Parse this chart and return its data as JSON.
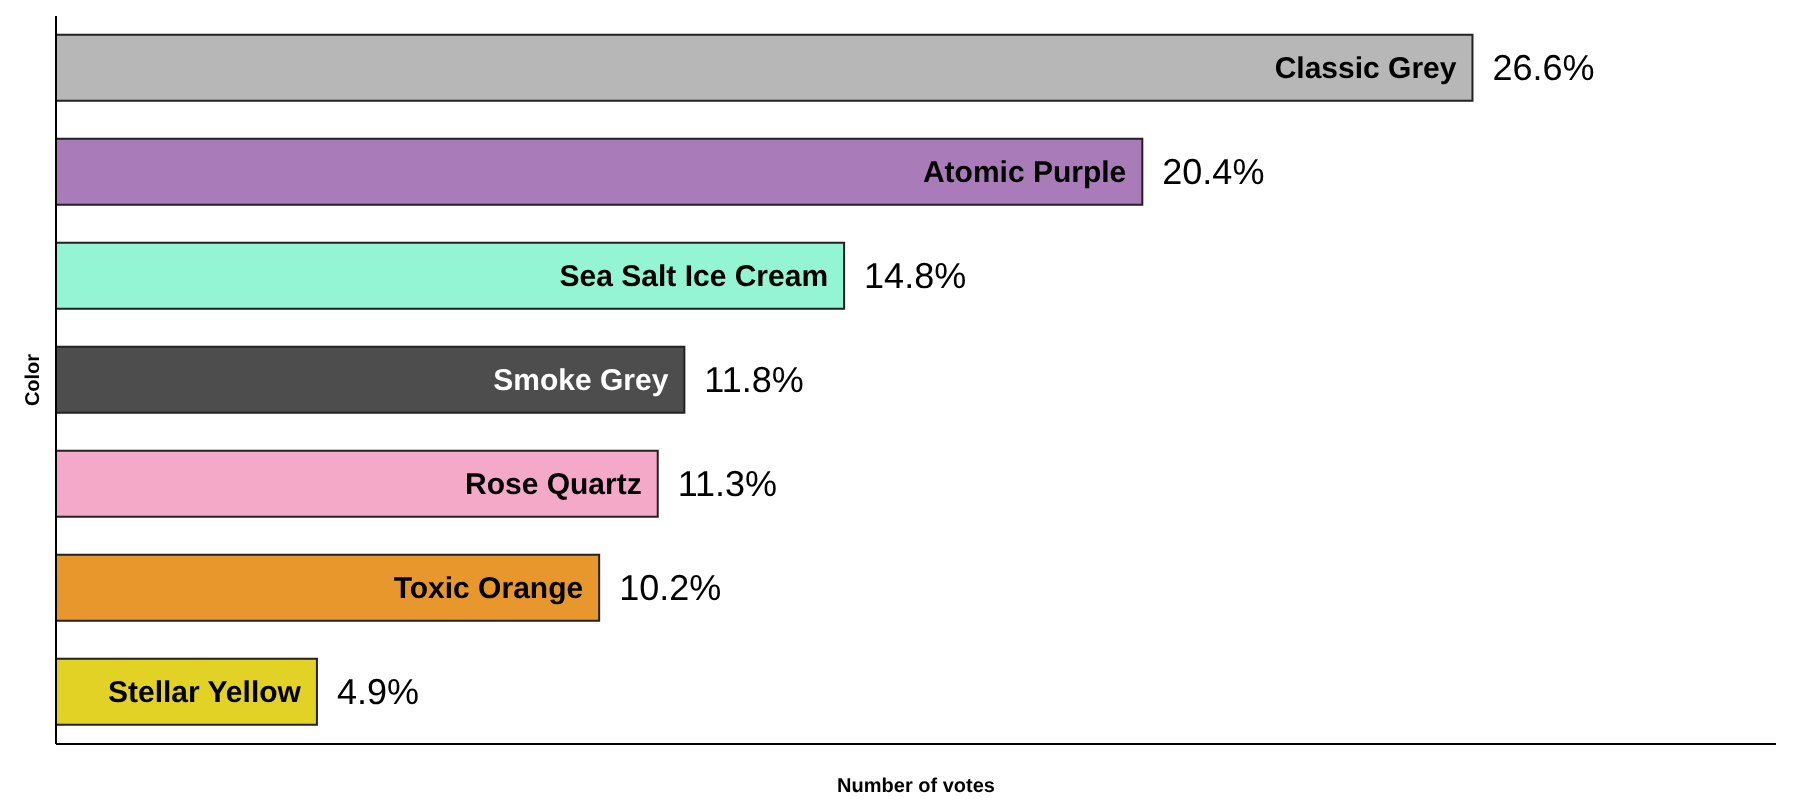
{
  "chart_data": {
    "type": "bar",
    "orientation": "horizontal",
    "xlabel": "Number of votes",
    "ylabel": "Color",
    "categories": [
      "Classic Grey",
      "Atomic Purple",
      "Sea Salt Ice Cream",
      "Smoke Grey",
      "Rose Quartz",
      "Toxic Orange",
      "Stellar Yellow"
    ],
    "values": [
      26.6,
      20.4,
      14.8,
      11.8,
      11.3,
      10.2,
      4.9
    ],
    "value_labels": [
      "26.6%",
      "20.4%",
      "14.8%",
      "11.8%",
      "11.3%",
      "10.2%",
      "4.9%"
    ],
    "colors": [
      "#b7b7b7",
      "#a97bb8",
      "#93f5d3",
      "#4d4d4d",
      "#f4a9c9",
      "#e8972c",
      "#e3d226"
    ],
    "xlim": [
      0,
      32.3
    ]
  }
}
